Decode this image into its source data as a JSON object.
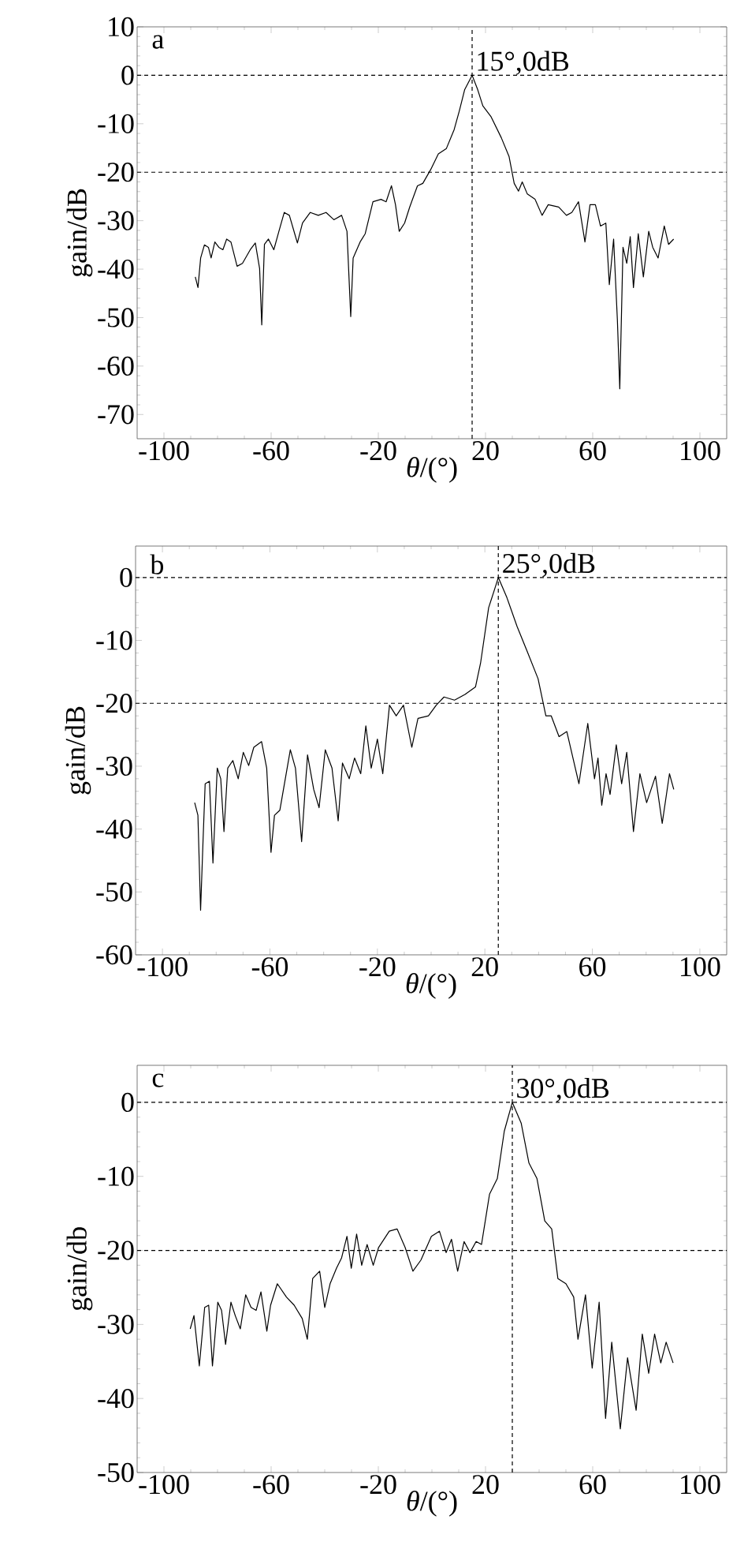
{
  "chart_data": [
    {
      "type": "line",
      "title": "a",
      "xlabel": "*θ*/(°)",
      "ylabel": "gain/dB",
      "xlim": [
        -110,
        110
      ],
      "ylim": [
        -75,
        10
      ],
      "xticks": [
        -100,
        -60,
        -20,
        20,
        60,
        100
      ],
      "yticks": [
        10,
        0,
        -10,
        -20,
        -30,
        -40,
        -50,
        -60,
        -70
      ],
      "x": [
        -88.3,
        -87.3,
        -86.3,
        -84.9,
        -83.4,
        -82.4,
        -81,
        -79.5,
        -78,
        -76.6,
        -75,
        -72.7,
        -70.7,
        -67.8,
        -65.9,
        -64.3,
        -63.5,
        -62.5,
        -61,
        -59,
        -57.1,
        -55.1,
        -53.2,
        -51.2,
        -50.2,
        -48.3,
        -45.4,
        -42.4,
        -39.5,
        -36.6,
        -33.7,
        -31.7,
        -30.3,
        -29.4,
        -26.8,
        -24.9,
        -22,
        -19,
        -17.1,
        -15.1,
        -13.6,
        -12.2,
        -10.2,
        -8.3,
        -5.4,
        -3.4,
        -0.5,
        2.4,
        5.4,
        8.3,
        10.2,
        12.2,
        15,
        17.1,
        19,
        22,
        25.9,
        28.8,
        30.7,
        32.3,
        33.7,
        35.6,
        38.5,
        41.1,
        43.4,
        47.3,
        50.2,
        52.2,
        54.7,
        57.1,
        59,
        61,
        62.9,
        64.9,
        66.2,
        67.8,
        69.2,
        70.1,
        71.3,
        72.7,
        74,
        75.2,
        77,
        78.9,
        80.9,
        82.4,
        84.4,
        86.7,
        88.3,
        90.2
      ],
      "series": [
        {
          "color": "#000000",
          "values": [
            -41.6,
            -43.8,
            -37.7,
            -35,
            -35.5,
            -37.7,
            -34.4,
            -35.5,
            -36,
            -33.8,
            -34.4,
            -39.4,
            -38.8,
            -36,
            -34.6,
            -39.9,
            -51.5,
            -34.9,
            -33.8,
            -36,
            -32.2,
            -28.3,
            -28.9,
            -32.7,
            -34.6,
            -30.5,
            -28.3,
            -28.9,
            -28.3,
            -29.8,
            -28.9,
            -32.2,
            -49.8,
            -37.7,
            -34.4,
            -32.7,
            -26.1,
            -25.6,
            -26.1,
            -22.8,
            -26.7,
            -32.2,
            -30.5,
            -27.2,
            -22.8,
            -22.3,
            -19.5,
            -16.2,
            -15.1,
            -11.2,
            -7.4,
            -3,
            0,
            -3,
            -6.3,
            -8.5,
            -12.9,
            -16.8,
            -22.3,
            -23.9,
            -22,
            -24.5,
            -25.6,
            -28.9,
            -26.7,
            -27.2,
            -28.9,
            -28.3,
            -26.1,
            -34.4,
            -26.7,
            -26.7,
            -31.1,
            -30.5,
            -43.2,
            -33.8,
            -50.4,
            -64.7,
            -35.5,
            -38.8,
            -33.3,
            -43.8,
            -32.7,
            -41.6,
            -32.2,
            -35.5,
            -37.7,
            -31.1,
            -34.9,
            -33.8
          ]
        }
      ],
      "ref_lines": [
        {
          "axis": "y",
          "value": 0,
          "line_style": "dashed"
        },
        {
          "axis": "y",
          "value": -20,
          "line_style": "dashed"
        },
        {
          "axis": "x",
          "value": 15,
          "line_style": "dashed"
        }
      ],
      "annotations": [
        {
          "text": "15°,0dB",
          "x": 15,
          "y": 0
        }
      ]
    },
    {
      "type": "line",
      "title": "b",
      "xlabel": "*θ*/(°)",
      "ylabel": "gain/dB",
      "xlim": [
        -110,
        110
      ],
      "ylim": [
        -60,
        5
      ],
      "xticks": [
        -100,
        -60,
        -20,
        20,
        60,
        100
      ],
      "yticks": [
        0,
        -10,
        -20,
        -30,
        -40,
        -50,
        -60
      ],
      "x": [
        -88,
        -86.8,
        -85.8,
        -84.9,
        -84.1,
        -82.5,
        -81.2,
        -79.6,
        -78.3,
        -77.1,
        -75.7,
        -73.8,
        -71.8,
        -69.9,
        -67.9,
        -66,
        -63.1,
        -61.2,
        -59.6,
        -58.3,
        -56.3,
        -52.4,
        -50.5,
        -48.2,
        -46,
        -43.7,
        -41.7,
        -39.4,
        -36.9,
        -34.6,
        -33,
        -30.5,
        -28.5,
        -26.2,
        -24.3,
        -22.3,
        -20,
        -18,
        -15.5,
        -13,
        -10.3,
        -7.2,
        -4.9,
        -1,
        1.9,
        4.8,
        8.7,
        12.6,
        16.5,
        18.4,
        21.4,
        23.3,
        25,
        28.2,
        32,
        35.9,
        39.8,
        42.7,
        44.7,
        47.6,
        50.5,
        55,
        58.3,
        60.8,
        62.1,
        63.5,
        65.1,
        66.6,
        68.9,
        70.9,
        72.8,
        75.3,
        77.7,
        80.2,
        83.5,
        86,
        88.7,
        90.3
      ],
      "series": [
        {
          "color": "#000000",
          "values": [
            -35.8,
            -37.8,
            -52.9,
            -42,
            -32.8,
            -32.4,
            -45.4,
            -30.3,
            -32,
            -40.4,
            -30.3,
            -29.1,
            -32,
            -27.8,
            -29.9,
            -27,
            -26.1,
            -30.3,
            -43.7,
            -37.8,
            -37,
            -27.4,
            -30.3,
            -42,
            -28.2,
            -33.7,
            -36.6,
            -27.4,
            -30.3,
            -38.7,
            -29.5,
            -32,
            -28.7,
            -31.2,
            -23.6,
            -30.3,
            -25.7,
            -31.2,
            -20.3,
            -22,
            -20.3,
            -27,
            -22.4,
            -22,
            -20.3,
            -19,
            -19.5,
            -18.6,
            -17.4,
            -13.6,
            -4.8,
            -2.3,
            0,
            -3.2,
            -7.8,
            -11.9,
            -16.1,
            -22,
            -22,
            -25.3,
            -24.5,
            -32.8,
            -23.2,
            -32,
            -28.7,
            -36.2,
            -31.2,
            -34.5,
            -26.6,
            -32.8,
            -27.8,
            -40.4,
            -31.2,
            -35.8,
            -31.6,
            -39.1,
            -31.2,
            -33.7
          ]
        }
      ],
      "ref_lines": [
        {
          "axis": "y",
          "value": 0,
          "line_style": "dashed"
        },
        {
          "axis": "y",
          "value": -20,
          "line_style": "dashed"
        },
        {
          "axis": "x",
          "value": 25,
          "line_style": "dashed"
        }
      ],
      "annotations": [
        {
          "text": "25°,0dB",
          "x": 25,
          "y": 0
        }
      ]
    },
    {
      "type": "line",
      "title": "c",
      "xlabel": "*θ*/(°)",
      "ylabel": "gain/db",
      "xlim": [
        -110,
        110
      ],
      "ylim": [
        -50,
        5
      ],
      "xticks": [
        -100,
        -60,
        -20,
        20,
        60,
        100
      ],
      "yticks": [
        0,
        -10,
        -20,
        -30,
        -40,
        -50
      ],
      "x": [
        -90.2,
        -88.8,
        -86.8,
        -84.8,
        -83.3,
        -81.9,
        -79.9,
        -78.5,
        -77,
        -75,
        -73.4,
        -71.5,
        -69.5,
        -67.5,
        -65.6,
        -63.8,
        -61.6,
        -60.2,
        -57.7,
        -54.3,
        -51.4,
        -48.4,
        -46.5,
        -44.5,
        -41.9,
        -40,
        -38,
        -35.6,
        -33.7,
        -31.7,
        -30.1,
        -28.1,
        -26.2,
        -24.2,
        -21.9,
        -19.9,
        -15.9,
        -13,
        -10,
        -7.1,
        -4.1,
        -0.2,
        2.8,
        5.3,
        7.3,
        9.6,
        12,
        14.2,
        16.5,
        18.5,
        21.5,
        24.4,
        27,
        30,
        33.3,
        36.2,
        39.2,
        42.1,
        44.7,
        47,
        50,
        52.9,
        54.5,
        57.3,
        59.8,
        62.4,
        64.8,
        67.1,
        70.3,
        73,
        76.2,
        78.5,
        80.9,
        83.1,
        85.4,
        87.4,
        90
      ],
      "series": [
        {
          "color": "#000000",
          "values": [
            -30.6,
            -28.8,
            -35.6,
            -27.7,
            -27.4,
            -35.6,
            -27,
            -28.1,
            -32.7,
            -27,
            -28.8,
            -30.6,
            -26,
            -27.7,
            -28.1,
            -25.6,
            -30.9,
            -27.4,
            -24.5,
            -26.3,
            -27.4,
            -29.2,
            -32,
            -23.8,
            -22.8,
            -27.7,
            -24.5,
            -22.4,
            -21,
            -18.1,
            -22.4,
            -17.8,
            -22,
            -19.2,
            -22,
            -19.6,
            -17.4,
            -17.1,
            -19.6,
            -22.8,
            -21.3,
            -18.1,
            -17.4,
            -20.3,
            -18.5,
            -22.8,
            -18.8,
            -20.3,
            -18.8,
            -19.2,
            -12.4,
            -10.3,
            -3.9,
            0,
            -2.8,
            -8.2,
            -10.3,
            -16,
            -17.1,
            -23.8,
            -24.5,
            -26.3,
            -32,
            -26,
            -35.9,
            -27,
            -42.7,
            -32.4,
            -44.1,
            -34.5,
            -41.6,
            -31.3,
            -36.6,
            -31.3,
            -35.2,
            -32.4,
            -35.2
          ]
        }
      ],
      "ref_lines": [
        {
          "axis": "y",
          "value": 0,
          "line_style": "dashed"
        },
        {
          "axis": "y",
          "value": -20,
          "line_style": "dashed"
        },
        {
          "axis": "x",
          "value": 30,
          "line_style": "dashed"
        }
      ],
      "annotations": [
        {
          "text": "30°,0dB",
          "x": 30,
          "y": 0
        }
      ]
    }
  ]
}
